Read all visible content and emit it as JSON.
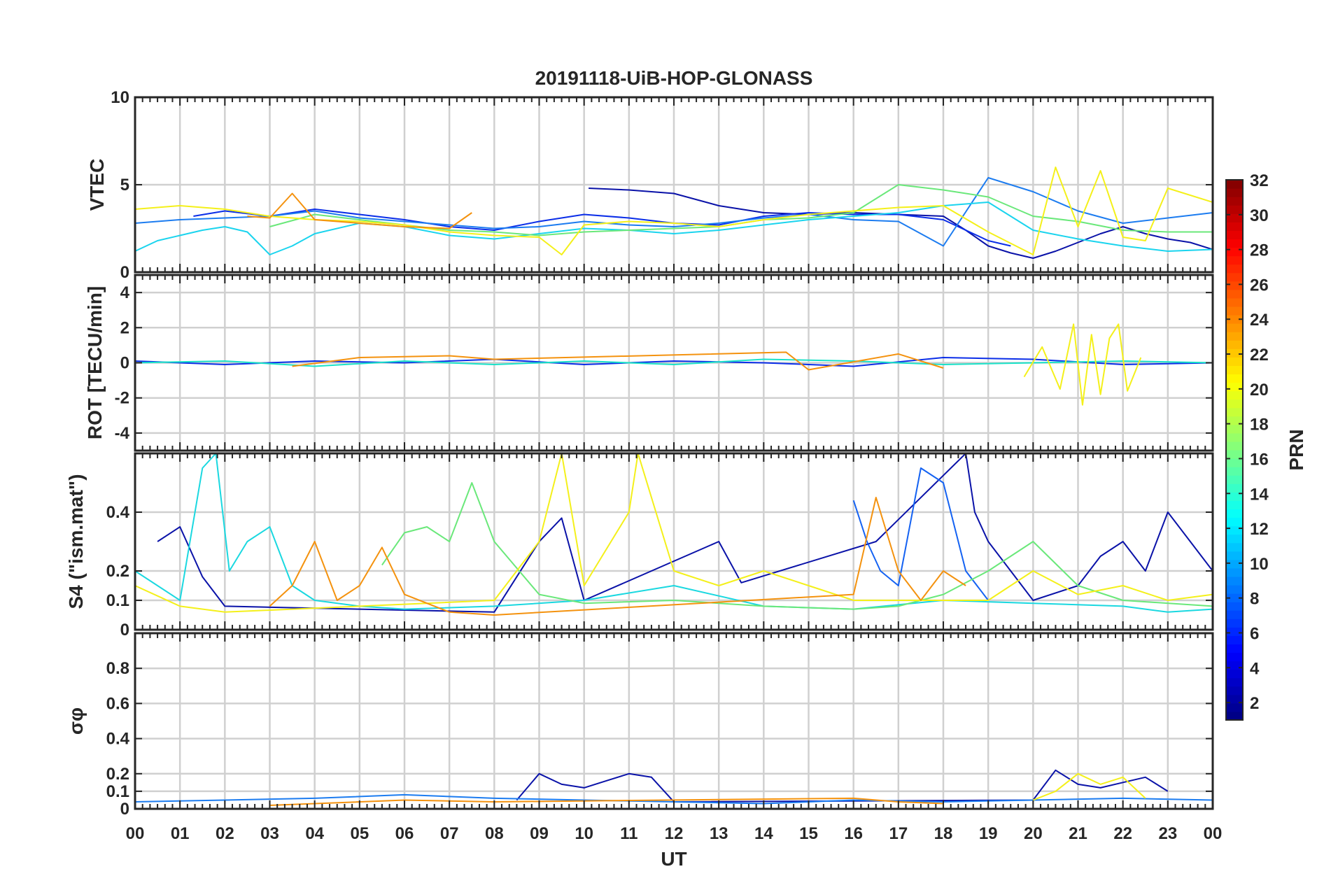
{
  "chart_data": {
    "type": "line",
    "title": "20191118-UiB-HOP-GLONASS",
    "xlabel": "UT",
    "x_ticks": [
      "00",
      "01",
      "02",
      "03",
      "04",
      "05",
      "06",
      "07",
      "08",
      "09",
      "10",
      "11",
      "12",
      "13",
      "14",
      "15",
      "16",
      "17",
      "18",
      "19",
      "20",
      "21",
      "22",
      "23",
      "00"
    ],
    "xlim": [
      0,
      24
    ],
    "grid": true,
    "colorbar": {
      "label": "PRN",
      "range": [
        1,
        32
      ],
      "colormap": "jet",
      "ticks": [
        2,
        4,
        6,
        8,
        10,
        12,
        14,
        16,
        18,
        20,
        22,
        24,
        26,
        28,
        30,
        32
      ]
    },
    "panels": [
      {
        "ylabel": "VTEC",
        "ylim": [
          0,
          10
        ],
        "y_ticks": [
          0,
          5,
          10
        ],
        "series": [
          {
            "prn": 2,
            "color": "#0a12a8",
            "x": [
              10.1,
              11,
              12,
              13,
              14,
              15,
              16,
              17,
              18,
              18.5,
              19,
              19.5,
              20,
              20.5,
              21,
              21.5,
              22,
              22.5,
              23,
              23.5,
              24
            ],
            "y": [
              4.8,
              4.7,
              4.5,
              3.8,
              3.4,
              3.3,
              3.4,
              3.3,
              3.2,
              2.4,
              1.5,
              1.1,
              0.8,
              1.2,
              1.7,
              2.2,
              2.6,
              2.2,
              1.9,
              1.7,
              1.3
            ]
          },
          {
            "prn": 4,
            "color": "#0b2ee8",
            "x": [
              1.3,
              2,
              3,
              4,
              5,
              6,
              7,
              8,
              9,
              10,
              11,
              12,
              13,
              14,
              15,
              16,
              17,
              18,
              19,
              19.5
            ],
            "y": [
              3.2,
              3.5,
              3.2,
              3.6,
              3.3,
              3.0,
              2.6,
              2.4,
              2.9,
              3.3,
              3.1,
              2.8,
              2.7,
              3.2,
              3.4,
              3.3,
              3.3,
              3.0,
              1.8,
              1.5
            ]
          },
          {
            "prn": 7,
            "color": "#1c7cf0",
            "x": [
              0,
              1,
              2,
              3,
              4,
              5,
              6,
              7,
              8,
              9,
              10,
              11,
              12,
              13,
              14,
              15,
              16,
              17,
              18,
              19,
              20,
              21,
              22,
              23,
              24
            ],
            "y": [
              2.8,
              3.0,
              3.1,
              3.2,
              3.5,
              3.1,
              2.9,
              2.7,
              2.5,
              2.6,
              2.9,
              2.7,
              2.6,
              2.8,
              3.1,
              3.3,
              3.0,
              2.9,
              1.5,
              5.4,
              4.6,
              3.5,
              2.8,
              3.1,
              3.4
            ]
          },
          {
            "prn": 12,
            "color": "#1ad4ee",
            "x": [
              0,
              0.5,
              1,
              1.5,
              2,
              2.5,
              3,
              3.5,
              4,
              5,
              6,
              7,
              8,
              9,
              10,
              11,
              12,
              13,
              14,
              15,
              16,
              17,
              18,
              19,
              20,
              21,
              22,
              23,
              24
            ],
            "y": [
              1.2,
              1.8,
              2.1,
              2.4,
              2.6,
              2.3,
              1.0,
              1.5,
              2.2,
              2.8,
              2.6,
              2.1,
              1.9,
              2.2,
              2.5,
              2.4,
              2.2,
              2.4,
              2.7,
              3.0,
              3.2,
              3.4,
              3.8,
              4.0,
              2.4,
              1.9,
              1.5,
              1.2,
              1.3
            ]
          },
          {
            "prn": 16,
            "color": "#6ae87a",
            "x": [
              3,
              4,
              5,
              6,
              7,
              8,
              9,
              10,
              11,
              12,
              13,
              14,
              15,
              16,
              17,
              18,
              19,
              20,
              21,
              22,
              23,
              24
            ],
            "y": [
              2.6,
              3.3,
              3.0,
              2.7,
              2.4,
              2.3,
              2.1,
              2.3,
              2.4,
              2.5,
              2.6,
              3.0,
              3.1,
              3.4,
              5.0,
              4.7,
              4.3,
              3.2,
              2.9,
              2.4,
              2.3,
              2.3
            ]
          },
          {
            "prn": 20,
            "color": "#f4f01a",
            "x": [
              0,
              1,
              2,
              3,
              4,
              5,
              6,
              7,
              8,
              9,
              9.5,
              10,
              11,
              12,
              13,
              14,
              15,
              16,
              17,
              18,
              19,
              20,
              20.5,
              21,
              21.5,
              22,
              22.5,
              23,
              24
            ],
            "y": [
              3.6,
              3.8,
              3.6,
              3.2,
              3.0,
              2.9,
              2.7,
              2.3,
              2.1,
              2.0,
              1.0,
              2.7,
              2.9,
              2.8,
              2.6,
              3.0,
              3.3,
              3.5,
              3.7,
              3.8,
              2.3,
              1.0,
              6.0,
              2.6,
              5.8,
              2.0,
              1.8,
              4.8,
              4.0
            ]
          },
          {
            "prn": 23,
            "color": "#f4920e",
            "x": [
              2.5,
              3,
              3.5,
              4,
              5,
              6,
              7,
              7.5
            ],
            "y": [
              3.2,
              3.1,
              4.5,
              3.0,
              2.8,
              2.6,
              2.5,
              3.4
            ]
          }
        ]
      },
      {
        "ylabel": "ROT [TECU/min]",
        "ylim": [
          -5,
          5
        ],
        "y_ticks": [
          -4,
          -2,
          0,
          2,
          4
        ],
        "series": [
          {
            "prn": 4,
            "color": "#0b2ee8",
            "x": [
              0,
              2,
              4,
              6,
              8,
              10,
              12,
              14,
              16,
              18,
              20,
              22,
              24
            ],
            "y": [
              0.1,
              -0.1,
              0.1,
              0.0,
              0.2,
              -0.1,
              0.1,
              0.0,
              -0.2,
              0.3,
              0.2,
              -0.1,
              0.0
            ]
          },
          {
            "prn": 14,
            "color": "#1ae2c8",
            "x": [
              0,
              2,
              4,
              6,
              8,
              10,
              12,
              14,
              16,
              18,
              20,
              22,
              24
            ],
            "y": [
              0.0,
              0.1,
              -0.2,
              0.1,
              -0.1,
              0.1,
              -0.1,
              0.2,
              0.1,
              -0.1,
              0.0,
              0.1,
              0.0
            ]
          },
          {
            "prn": 20,
            "color": "#f4f01a",
            "x": [
              19.8,
              20.2,
              20.6,
              20.9,
              21.1,
              21.3,
              21.5,
              21.7,
              21.9,
              22.1,
              22.4
            ],
            "y": [
              -0.8,
              0.9,
              -1.5,
              2.2,
              -2.4,
              1.6,
              -1.8,
              1.4,
              2.2,
              -1.6,
              0.3
            ]
          },
          {
            "prn": 23,
            "color": "#f4920e",
            "x": [
              3.5,
              5,
              7,
              8,
              14.5,
              15,
              17,
              18
            ],
            "y": [
              -0.2,
              0.3,
              0.4,
              0.2,
              0.6,
              -0.4,
              0.5,
              -0.3
            ]
          }
        ]
      },
      {
        "ylabel": "S4 (\"ism.mat\")",
        "ylim": [
          0,
          0.6
        ],
        "y_ticks": [
          0,
          0.1,
          0.2,
          0.4
        ],
        "series": [
          {
            "prn": 2,
            "color": "#0a12a8",
            "x": [
              0.5,
              1,
              1.5,
              2,
              8,
              9,
              9.5,
              10,
              13,
              13.5,
              16.5,
              18.5,
              18.7,
              19,
              19.5,
              20,
              21,
              21.5,
              22,
              22.5,
              23,
              23.5,
              24
            ],
            "y": [
              0.3,
              0.35,
              0.18,
              0.08,
              0.06,
              0.3,
              0.38,
              0.1,
              0.3,
              0.16,
              0.3,
              0.6,
              0.4,
              0.3,
              0.2,
              0.1,
              0.15,
              0.25,
              0.3,
              0.2,
              0.4,
              0.3,
              0.2
            ]
          },
          {
            "prn": 8,
            "color": "#1462f2",
            "x": [
              16,
              16.3,
              16.6,
              17,
              17.5,
              18,
              18.5,
              19
            ],
            "y": [
              0.44,
              0.3,
              0.2,
              0.15,
              0.55,
              0.5,
              0.2,
              0.1
            ]
          },
          {
            "prn": 13,
            "color": "#1ad8e0",
            "x": [
              0,
              1,
              1.5,
              1.8,
              2.1,
              2.5,
              3,
              3.5,
              4,
              5,
              6,
              8,
              10,
              12,
              14,
              16,
              18,
              20,
              22,
              23,
              24
            ],
            "y": [
              0.2,
              0.1,
              0.55,
              0.6,
              0.2,
              0.3,
              0.35,
              0.15,
              0.1,
              0.08,
              0.07,
              0.08,
              0.1,
              0.15,
              0.08,
              0.07,
              0.1,
              0.09,
              0.08,
              0.06,
              0.07
            ]
          },
          {
            "prn": 16,
            "color": "#6ae87a",
            "x": [
              5.5,
              6,
              6.5,
              7,
              7.5,
              8,
              9,
              10,
              12,
              14,
              16,
              17,
              18,
              19,
              20,
              21,
              22,
              24
            ],
            "y": [
              0.22,
              0.33,
              0.35,
              0.3,
              0.5,
              0.3,
              0.12,
              0.09,
              0.1,
              0.08,
              0.07,
              0.08,
              0.12,
              0.2,
              0.3,
              0.15,
              0.1,
              0.08
            ]
          },
          {
            "prn": 20,
            "color": "#f4f01a",
            "x": [
              0,
              1,
              2,
              8,
              9,
              9.5,
              10,
              11,
              11.2,
              12,
              13,
              14,
              15,
              16,
              19,
              20,
              21,
              22,
              23,
              24
            ],
            "y": [
              0.15,
              0.08,
              0.06,
              0.1,
              0.3,
              0.6,
              0.15,
              0.4,
              0.6,
              0.2,
              0.15,
              0.2,
              0.15,
              0.1,
              0.1,
              0.2,
              0.12,
              0.15,
              0.1,
              0.12
            ]
          },
          {
            "prn": 23,
            "color": "#f4920e",
            "x": [
              3,
              3.5,
              4,
              4.5,
              5,
              5.5,
              6,
              7,
              8,
              16,
              16.5,
              17,
              17.5,
              18,
              18.5
            ],
            "y": [
              0.08,
              0.15,
              0.3,
              0.1,
              0.15,
              0.28,
              0.12,
              0.06,
              0.05,
              0.12,
              0.45,
              0.2,
              0.1,
              0.2,
              0.15
            ]
          }
        ]
      },
      {
        "ylabel": "σφ",
        "ylim": [
          0,
          1
        ],
        "y_ticks": [
          0,
          0.1,
          0.2,
          0.4,
          0.6,
          0.8
        ],
        "series": [
          {
            "prn": 2,
            "color": "#0a12a8",
            "x": [
              8.5,
              9,
              9.5,
              10,
              10.5,
              11,
              11.5,
              12,
              20,
              20.5,
              21,
              21.5,
              22,
              22.5,
              23
            ],
            "y": [
              0.05,
              0.2,
              0.14,
              0.12,
              0.16,
              0.2,
              0.18,
              0.04,
              0.05,
              0.22,
              0.14,
              0.12,
              0.15,
              0.18,
              0.1
            ]
          },
          {
            "prn": 7,
            "color": "#1c7cf0",
            "x": [
              0,
              2,
              4,
              6,
              8,
              10,
              12,
              14,
              16,
              18,
              20,
              22,
              24
            ],
            "y": [
              0.04,
              0.05,
              0.06,
              0.08,
              0.06,
              0.05,
              0.04,
              0.03,
              0.05,
              0.04,
              0.05,
              0.06,
              0.05
            ]
          },
          {
            "prn": 20,
            "color": "#f4f01a",
            "x": [
              20,
              20.5,
              21,
              21.5,
              22,
              22.5
            ],
            "y": [
              0.05,
              0.1,
              0.2,
              0.14,
              0.18,
              0.06
            ]
          },
          {
            "prn": 23,
            "color": "#f4920e",
            "x": [
              3,
              6,
              8,
              16,
              17,
              18
            ],
            "y": [
              0.02,
              0.05,
              0.04,
              0.06,
              0.04,
              0.03
            ]
          }
        ]
      }
    ]
  }
}
